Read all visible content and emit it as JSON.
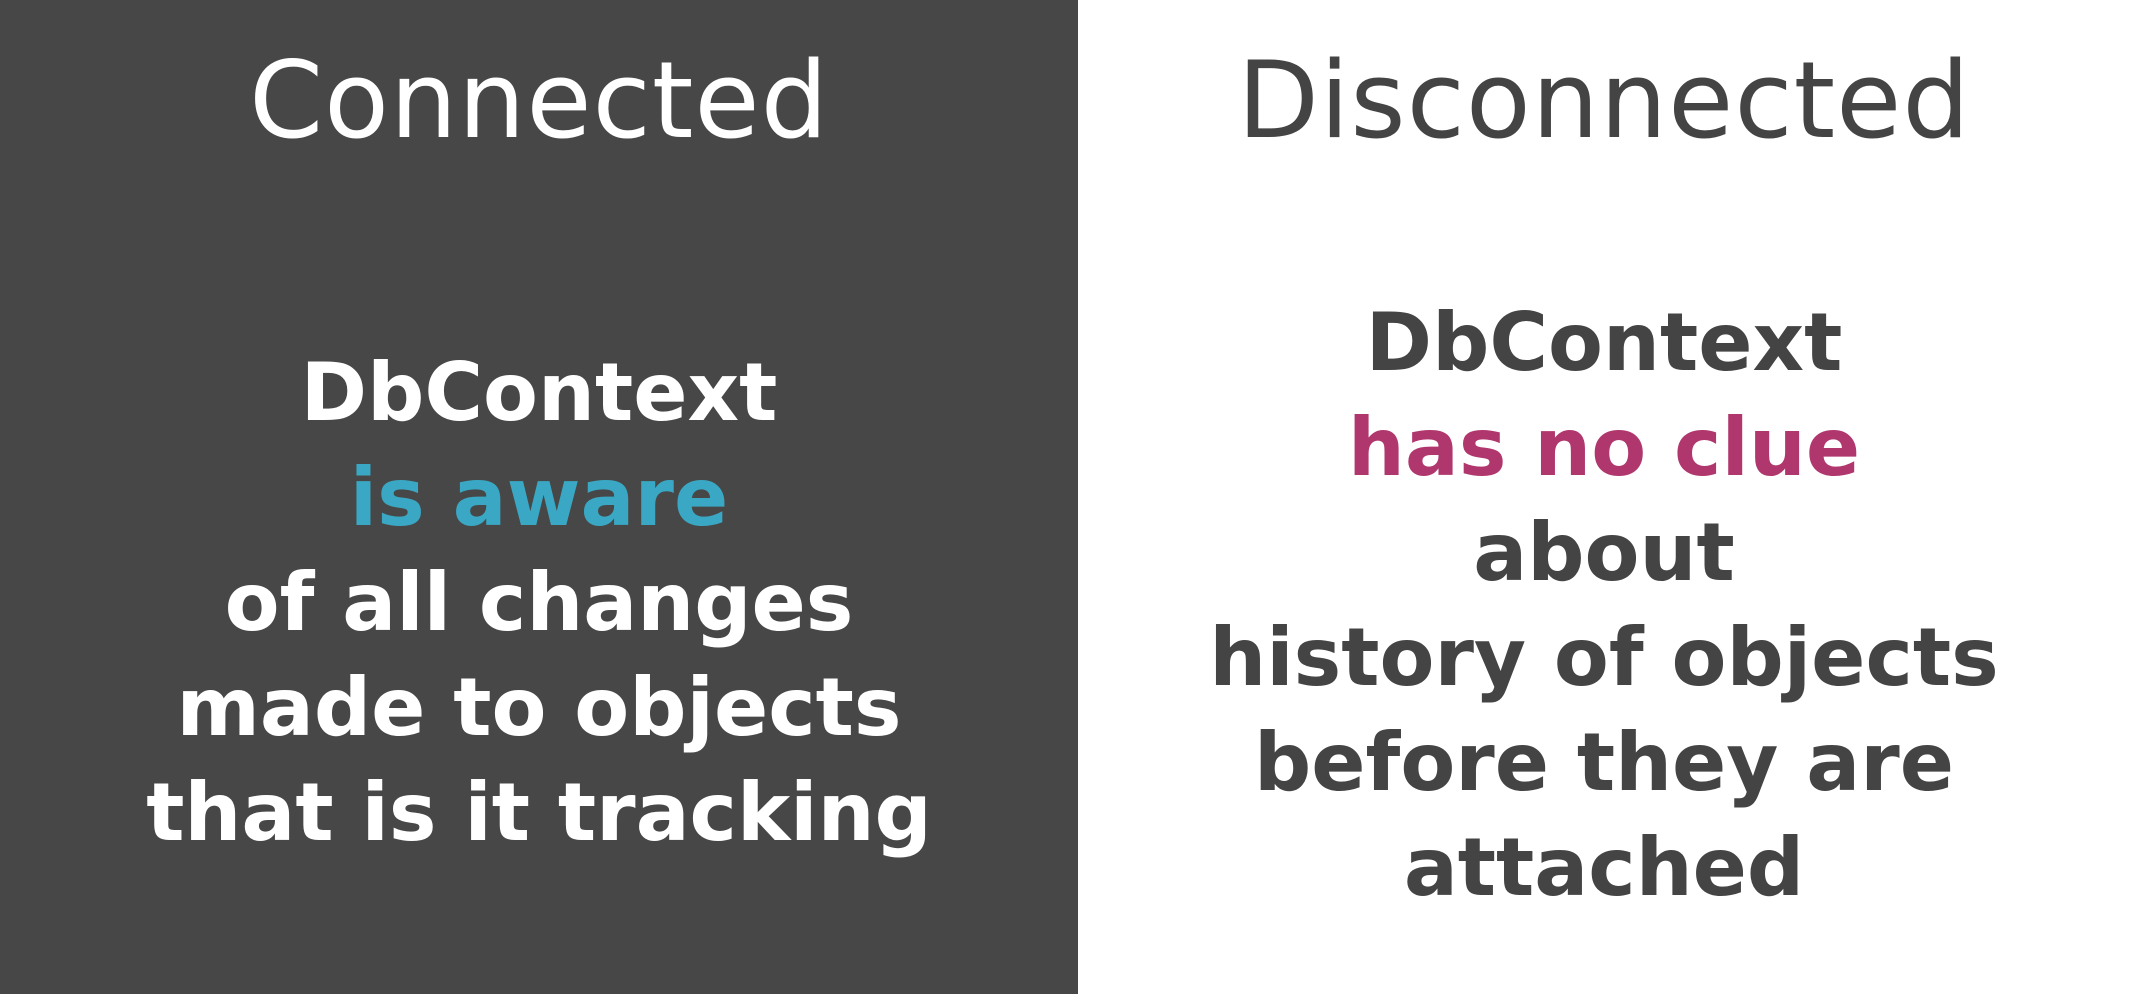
{
  "colors": {
    "left_background": "#474747",
    "right_background": "#ffffff",
    "left_text": "#ffffff",
    "right_text": "#444444",
    "highlight_left": "#3aa8c4",
    "highlight_right": "#b0376e"
  },
  "left": {
    "heading": "Connected",
    "lines": [
      "DbContext",
      "is aware",
      "of all changes",
      "made to objects",
      "that is it tracking"
    ]
  },
  "right": {
    "heading": "Disconnected",
    "lines": [
      "DbContext",
      "has no clue",
      "about",
      "history of objects",
      "before they are",
      "attached"
    ]
  }
}
